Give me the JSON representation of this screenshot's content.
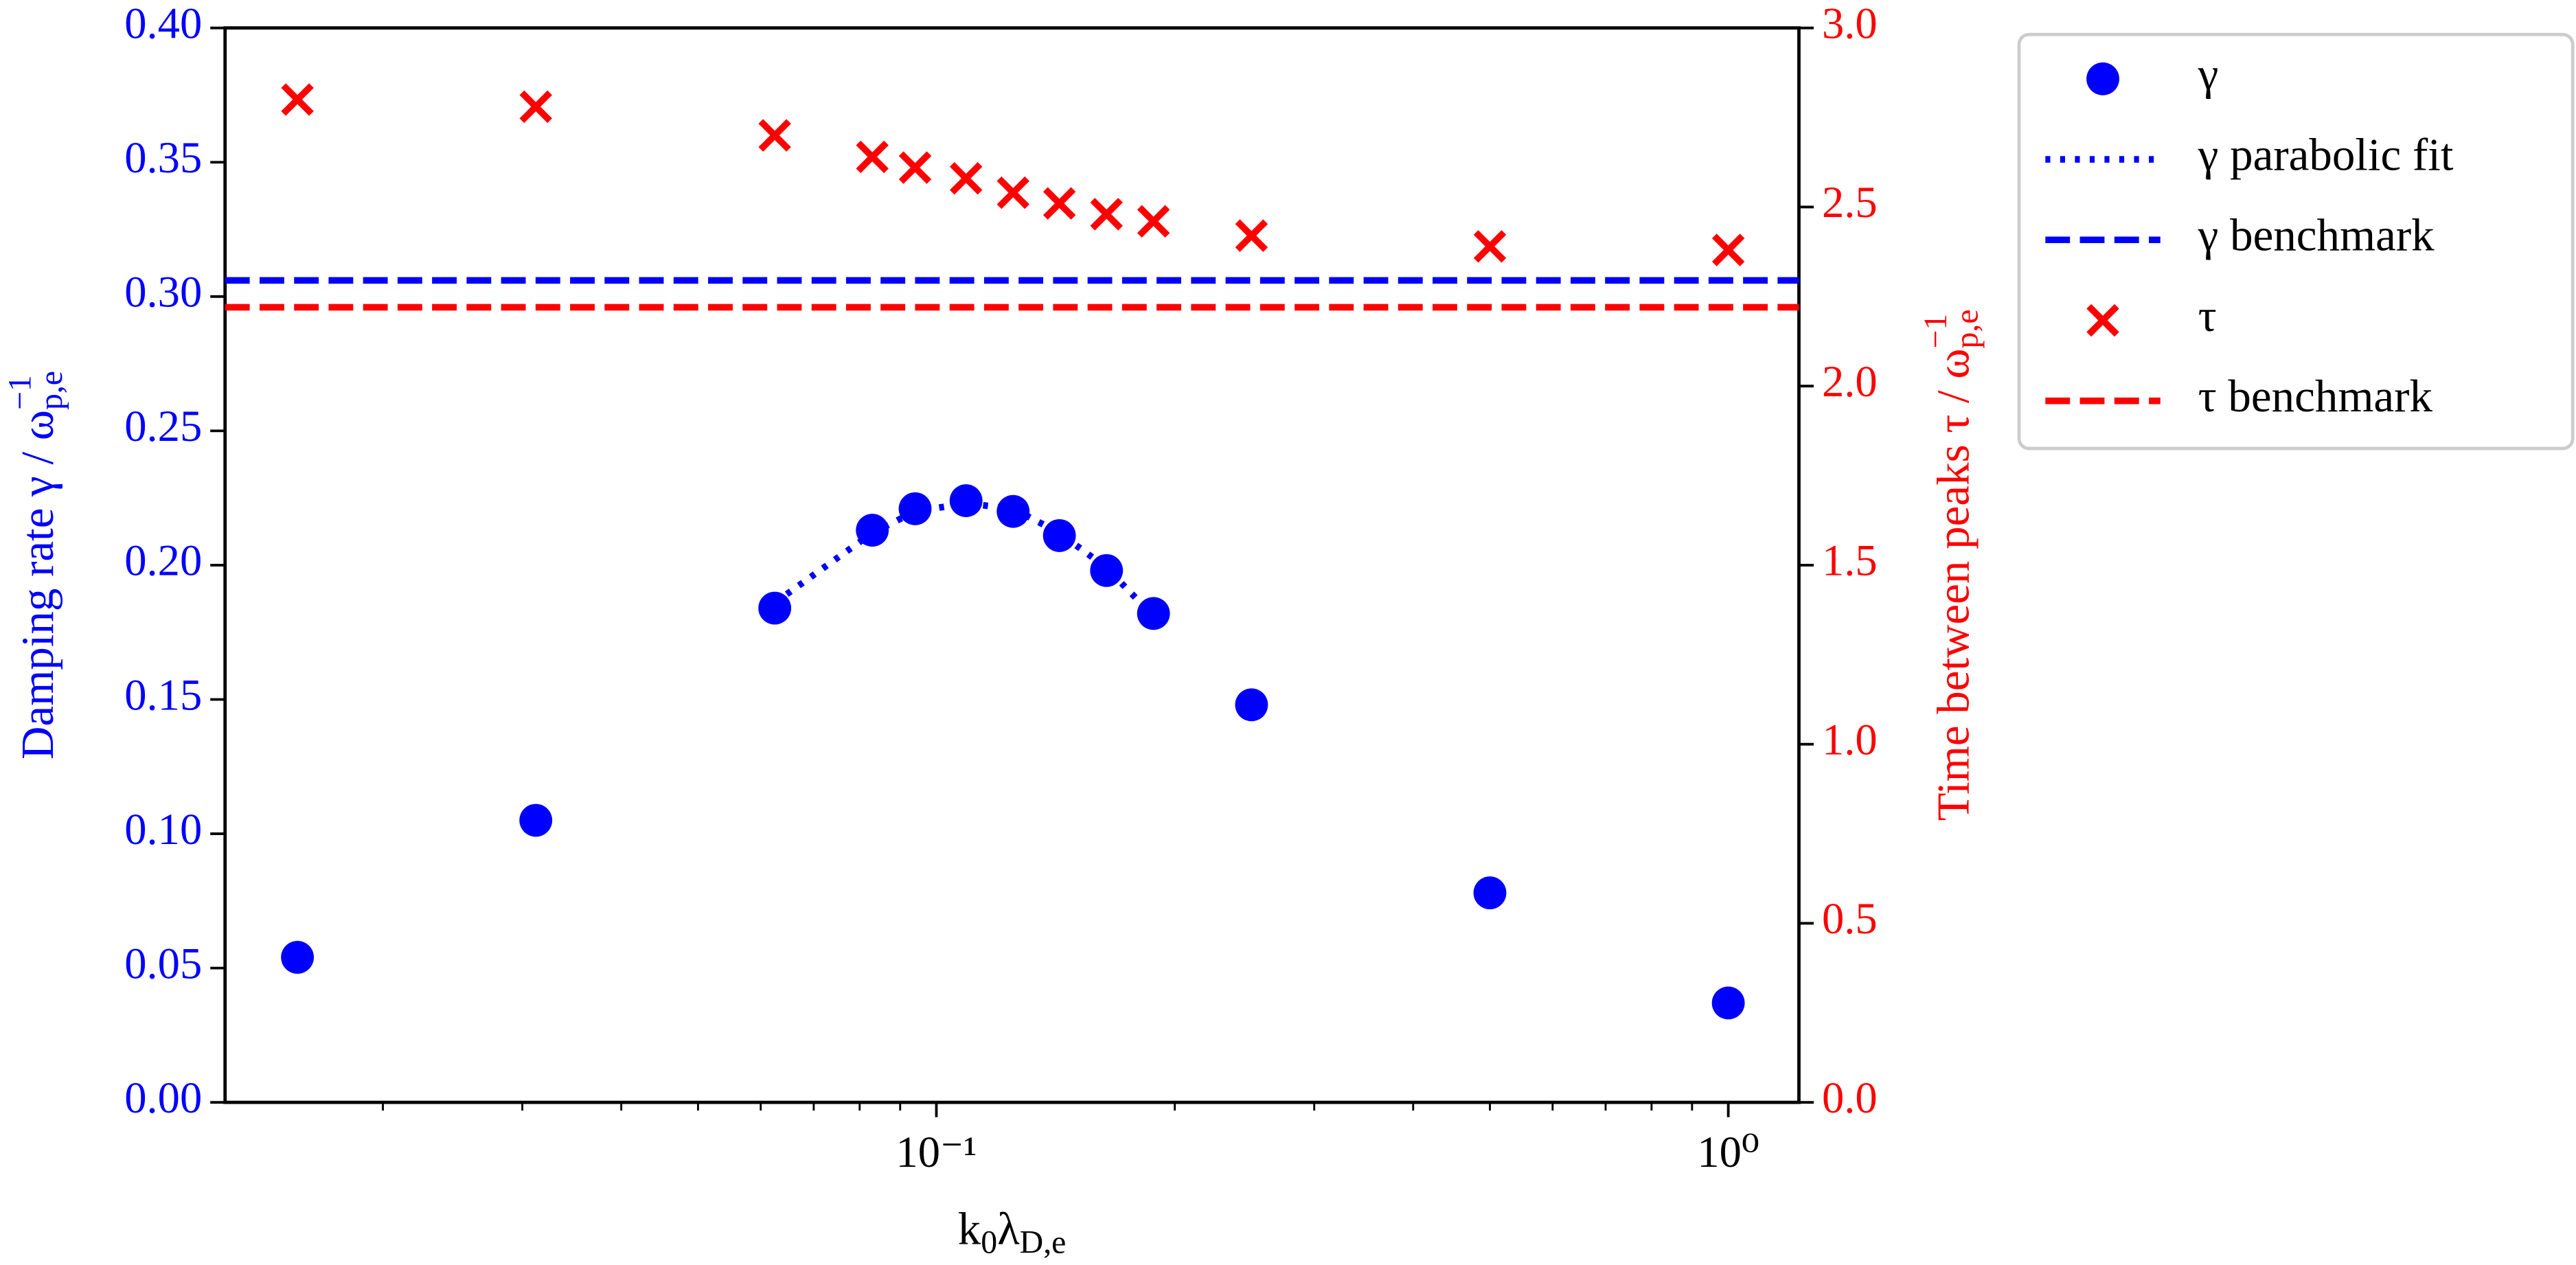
{
  "chart_data": {
    "type": "scatter",
    "xlabel": [
      "k",
      "0",
      "λ",
      "D,e"
    ],
    "ylabel": [
      "Damping rate γ / ω",
      "p,e",
      "−1"
    ],
    "y2label": [
      "Time between peaks τ / ω",
      "p,e",
      "−1"
    ],
    "xscale": "log",
    "xlim": [
      0.01264,
      1.228
    ],
    "xticks": [
      {
        "value": 0.1,
        "label": "10⁻¹"
      },
      {
        "value": 1,
        "label": "10⁰"
      }
    ],
    "xminorticks": [
      0.02,
      0.03,
      0.04,
      0.05,
      0.06,
      0.07,
      0.08,
      0.09,
      0.2,
      0.3,
      0.4,
      0.5,
      0.6,
      0.7,
      0.8,
      0.9
    ],
    "ylim": [
      0,
      0.4
    ],
    "yticks": [
      {
        "value": 0,
        "label": "0.00"
      },
      {
        "value": 0.05,
        "label": "0.05"
      },
      {
        "value": 0.1,
        "label": "0.10"
      },
      {
        "value": 0.15,
        "label": "0.15"
      },
      {
        "value": 0.2,
        "label": "0.20"
      },
      {
        "value": 0.25,
        "label": "0.25"
      },
      {
        "value": 0.3,
        "label": "0.30"
      },
      {
        "value": 0.35,
        "label": "0.35"
      },
      {
        "value": 0.4,
        "label": "0.40"
      }
    ],
    "ycolor": "#0000ff",
    "y2lim": [
      0,
      3
    ],
    "y2ticks": [
      {
        "value": 0,
        "label": "0.0"
      },
      {
        "value": 0.5,
        "label": "0.5"
      },
      {
        "value": 1,
        "label": "1.0"
      },
      {
        "value": 1.5,
        "label": "1.5"
      },
      {
        "value": 2,
        "label": "2.0"
      },
      {
        "value": 2.5,
        "label": "2.5"
      },
      {
        "value": 3,
        "label": "3.0"
      }
    ],
    "y2color": "#ff0000",
    "legend": "outside upper right",
    "series": [
      {
        "name": "γ",
        "kind": "scatter",
        "marker": "o",
        "color": "#0000ff",
        "x": [
          0.0156,
          0.0312,
          0.0625,
          0.083,
          0.094,
          0.109,
          0.125,
          0.143,
          0.164,
          0.188,
          0.25,
          0.5,
          1.0
        ],
        "values": [
          0.054,
          0.105,
          0.184,
          0.213,
          0.221,
          0.224,
          0.22,
          0.211,
          0.198,
          0.182,
          0.148,
          0.078,
          0.037
        ]
      },
      {
        "name": "γ parabolic fit",
        "kind": "line",
        "linestyle": "dotted",
        "color": "#0000ff",
        "x": [
          0.0625,
          0.083,
          0.094,
          0.109,
          0.125,
          0.143,
          0.164,
          0.188
        ],
        "values": [
          0.186,
          0.212,
          0.22,
          0.223,
          0.221,
          0.212,
          0.199,
          0.181
        ]
      },
      {
        "name": "γ benchmark",
        "kind": "hline",
        "linestyle": "dashed",
        "color": "#0000ff",
        "value": 0.306
      },
      {
        "name": "τ",
        "kind": "scatter",
        "marker": "x",
        "color": "#ff0000",
        "axis": "y2",
        "x": [
          0.0156,
          0.0312,
          0.0625,
          0.083,
          0.094,
          0.109,
          0.125,
          0.143,
          0.164,
          0.188,
          0.25,
          0.5,
          1.0
        ],
        "values": [
          2.8,
          2.78,
          2.7,
          2.64,
          2.61,
          2.58,
          2.54,
          2.51,
          2.48,
          2.46,
          2.42,
          2.39,
          2.38
        ]
      },
      {
        "name": "τ benchmark",
        "kind": "hline",
        "linestyle": "dashed",
        "color": "#ff0000",
        "axis": "y2",
        "value": 2.22
      }
    ]
  }
}
